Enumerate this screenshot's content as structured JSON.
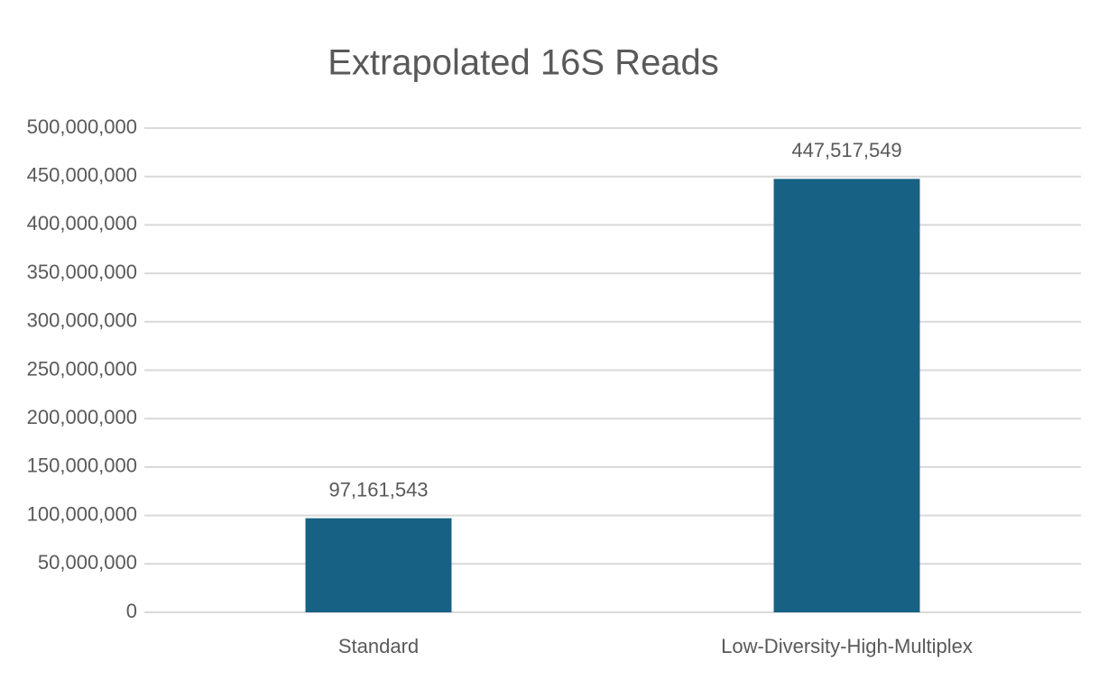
{
  "chart_data": {
    "type": "bar",
    "title": "Extrapolated 16S Reads",
    "categories": [
      "Standard",
      "Low-Diversity-High-Multiplex"
    ],
    "values": [
      97161543,
      447517549
    ],
    "value_labels": [
      "97,161,543",
      "447,517,549"
    ],
    "color": "#176184",
    "ylim": [
      0,
      500000000
    ],
    "yticks": [
      0,
      {
        "value": 50000000,
        "label": "50,000,000"
      },
      {
        "value": 100000000,
        "label": "100,000,000"
      },
      {
        "value": 150000000,
        "label": "150,000,000"
      },
      {
        "value": 200000000,
        "label": "200,000,000"
      },
      {
        "value": 250000000,
        "label": "250,000,000"
      },
      {
        "value": 300000000,
        "label": "300,000,000"
      },
      {
        "value": 350000000,
        "label": "350,000,000"
      },
      {
        "value": 400000000,
        "label": "400,000,000"
      },
      {
        "value": 450000000,
        "label": "450,000,000"
      },
      {
        "value": 500000000,
        "label": "500,000,000"
      }
    ],
    "grid": true
  }
}
